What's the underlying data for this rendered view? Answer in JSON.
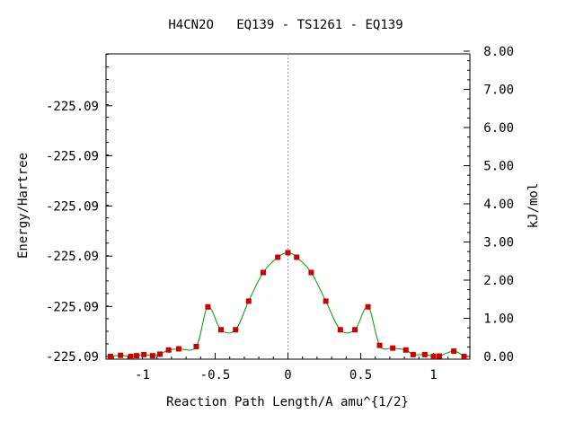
{
  "chart_data": {
    "type": "line",
    "title": "H4CN2O   EQ139 - TS1261 - EQ139",
    "xlabel": "Reaction Path Length/A amu^{1/2}",
    "ylabel": "Energy/Hartree",
    "y2label": "kJ/mol",
    "xlim": [
      -1.25,
      1.25
    ],
    "y2lim": [
      0,
      8
    ],
    "x_ticks": [
      {
        "value": -1,
        "label": "-1"
      },
      {
        "value": -0.5,
        "label": "-0.5"
      },
      {
        "value": 0,
        "label": "0"
      },
      {
        "value": 0.5,
        "label": "0.5"
      },
      {
        "value": 1,
        "label": "1"
      }
    ],
    "y_ticks": [
      {
        "value": 0.0,
        "label": "-225.09"
      },
      {
        "value": 1.31,
        "label": "-225.09"
      },
      {
        "value": 2.63,
        "label": "-225.09"
      },
      {
        "value": 3.94,
        "label": "-225.09"
      },
      {
        "value": 5.26,
        "label": "-225.09"
      },
      {
        "value": 6.57,
        "label": "-225.09"
      }
    ],
    "y2_ticks": [
      {
        "value": 0,
        "label": "0.00"
      },
      {
        "value": 1,
        "label": "1.00"
      },
      {
        "value": 2,
        "label": "2.00"
      },
      {
        "value": 3,
        "label": "3.00"
      },
      {
        "value": 4,
        "label": "4.00"
      },
      {
        "value": 5,
        "label": "5.00"
      },
      {
        "value": 6,
        "label": "6.00"
      },
      {
        "value": 7,
        "label": "7.00"
      },
      {
        "value": 8,
        "label": "8.00"
      }
    ],
    "ts_marker_x": 0,
    "series": [
      {
        "color": "#009900",
        "marker_color": "#cc0000",
        "x": [
          -1.22,
          -1.15,
          -1.08,
          -1.04,
          -0.99,
          -0.93,
          -0.88,
          -0.82,
          -0.75,
          -0.63,
          -0.55,
          -0.46,
          -0.36,
          -0.27,
          -0.17,
          -0.07,
          0.0,
          0.06,
          0.16,
          0.26,
          0.36,
          0.46,
          0.55,
          0.63,
          0.72,
          0.81,
          0.86,
          0.94,
          1.0,
          1.04,
          1.14,
          1.21
        ],
        "y": [
          0.0,
          0.03,
          0.0,
          0.02,
          0.05,
          0.02,
          0.06,
          0.17,
          0.2,
          0.26,
          1.3,
          0.7,
          0.7,
          1.45,
          2.2,
          2.6,
          2.72,
          2.6,
          2.2,
          1.45,
          0.7,
          0.7,
          1.3,
          0.29,
          0.22,
          0.17,
          0.05,
          0.05,
          0.0,
          0.01,
          0.14,
          0.0
        ]
      }
    ]
  }
}
